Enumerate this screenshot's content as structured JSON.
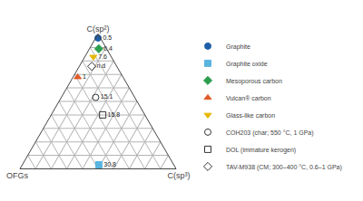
{
  "chart_data": {
    "type": "ternary",
    "top_label": "C(sp²)",
    "bottom_left_label": "OFGs",
    "bottom_right_label": "C(sp³)",
    "ticks": [
      0.1,
      0.2,
      0.3,
      0.4,
      0.5,
      0.6,
      0.7,
      0.8,
      0.9
    ],
    "tick_labels": false,
    "grid": true,
    "legend": "right",
    "data_labels": true,
    "series": [
      {
        "name": "Graphite",
        "color": "#1f5ea8",
        "marker": "circle",
        "sp2": 0.97,
        "sp3": 0.015,
        "ofg": 0.015,
        "label": "0.5"
      },
      {
        "name": "Graphite oxide",
        "color": "#5ab4e0",
        "marker": "square",
        "sp2": 0.03,
        "sp3": 0.49,
        "ofg": 0.48,
        "label": "30.8"
      },
      {
        "name": "Mesoporous carbon",
        "color": "#2d9e4f",
        "marker": "diamond",
        "sp2": 0.89,
        "sp3": 0.06,
        "ofg": 0.05,
        "label": "0.4"
      },
      {
        "name": "Vulcan® carbon",
        "color": "#e05a28",
        "marker": "triangle-up",
        "sp2": 0.68,
        "sp3": 0.03,
        "ofg": 0.29,
        "label": "1"
      },
      {
        "name": "Glass-like carbon",
        "color": "#e5b800",
        "marker": "triangle-down",
        "sp2": 0.83,
        "sp3": 0.055,
        "ofg": 0.115,
        "label": "7.6"
      },
      {
        "name": "COH203 (char; 550 °C, 1 GPa)",
        "color": "#333333",
        "marker": "circle-open",
        "sp2": 0.53,
        "sp3": 0.22,
        "ofg": 0.25,
        "label": "15.1"
      },
      {
        "name": "DOL (immature kerogen)",
        "color": "#333333",
        "marker": "square-open",
        "sp2": 0.4,
        "sp3": 0.33,
        "ofg": 0.27,
        "label": "15.8"
      },
      {
        "name": "TAV-M938 (CM; 300–400 °C, 0.6–1 GPa)",
        "color": "#333333",
        "marker": "diamond-open",
        "sp2": 0.76,
        "sp3": 0.08,
        "ofg": 0.16,
        "label": "n.d"
      }
    ]
  }
}
